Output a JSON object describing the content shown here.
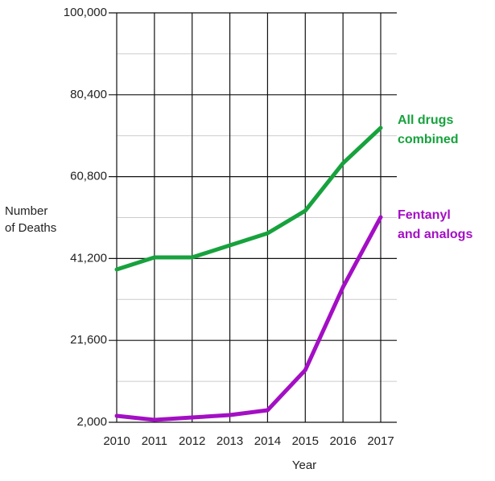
{
  "chart_data": {
    "type": "line",
    "x_label": "Year",
    "y_label": "Number of Deaths",
    "categories": [
      "2010",
      "2011",
      "2012",
      "2013",
      "2014",
      "2015",
      "2016",
      "2017"
    ],
    "series": [
      {
        "name": "All drugs combined",
        "color": "#17a23d",
        "values": [
          38580,
          41470,
          41470,
          44360,
          47250,
          52640,
          64000,
          72470
        ]
      },
      {
        "name": "Fentanyl and analogs",
        "color": "#a30fc4",
        "values": [
          3540,
          2580,
          3160,
          3730,
          4890,
          14500,
          34350,
          51100
        ]
      }
    ],
    "ylim": [
      2000,
      100000
    ],
    "yticks": [
      {
        "value": 2000,
        "label": "2,000"
      },
      {
        "value": 21600,
        "label": "21,600"
      },
      {
        "value": 41200,
        "label": "41,200"
      },
      {
        "value": 60800,
        "label": "60,800"
      },
      {
        "value": 80400,
        "label": "80,400"
      },
      {
        "value": 100000,
        "label": "100,000"
      }
    ],
    "yminor": [
      11800,
      31400,
      51000,
      70600,
      90200
    ],
    "grid": true
  }
}
